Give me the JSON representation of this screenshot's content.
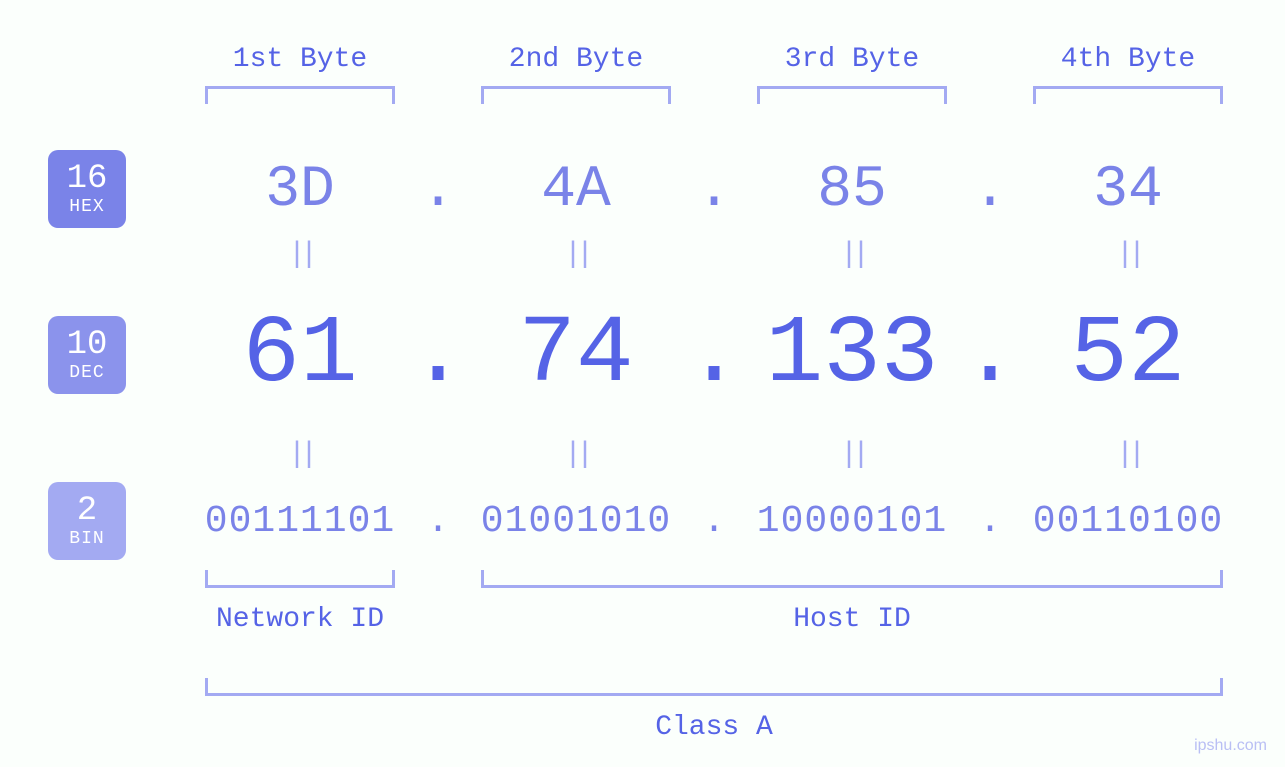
{
  "badges": {
    "hex": {
      "num": "16",
      "lbl": "HEX",
      "bg": "#7a83e8"
    },
    "dec": {
      "num": "10",
      "lbl": "DEC",
      "bg": "#8b93ec"
    },
    "bin": {
      "num": "2",
      "lbl": "BIN",
      "bg": "#a3aaf2"
    }
  },
  "byte_headers": [
    "1st Byte",
    "2nd Byte",
    "3rd Byte",
    "4th Byte"
  ],
  "hex": [
    "3D",
    "4A",
    "85",
    "34"
  ],
  "dec": [
    "61",
    "74",
    "133",
    "52"
  ],
  "bin": [
    "00111101",
    "01001010",
    "10000101",
    "00110100"
  ],
  "eq": "||",
  "dot": ".",
  "labels": {
    "network": "Network ID",
    "host": "Host ID",
    "class": "Class A"
  },
  "watermark": "ipshu.com",
  "colors": {
    "primary": "#5563e6",
    "secondary": "#7a83e8",
    "bracket": "#a3aaf2",
    "background": "#fbfffc"
  },
  "structure": {
    "type": "infographic",
    "columns": 4,
    "rows": [
      "hex",
      "dec",
      "bin"
    ],
    "network_id_bytes": 1,
    "host_id_bytes": 3,
    "class_span_bytes": 4,
    "font_family": "monospace",
    "hex_fontsize": 58,
    "dec_fontsize": 96,
    "bin_fontsize": 38,
    "label_fontsize": 28
  }
}
